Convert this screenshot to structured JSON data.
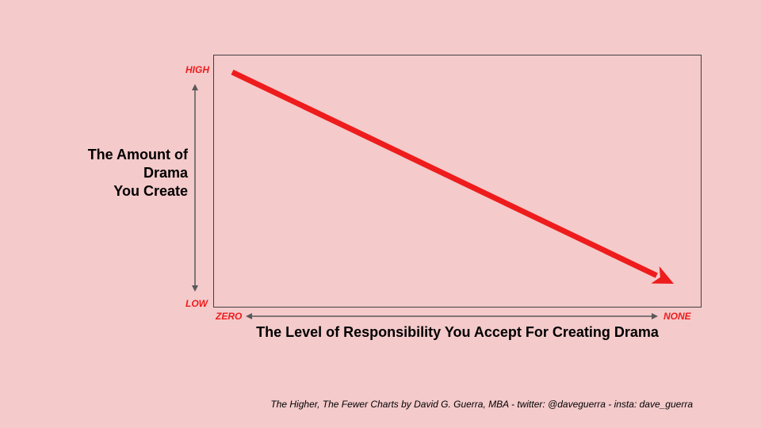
{
  "colors": {
    "background": "#f4cacb",
    "accent": "#ee1c1c",
    "axis_arrow": "#595959",
    "frame": "#404040"
  },
  "chart_data": {
    "type": "line",
    "y_axis": {
      "label_lines": [
        "The Amount of",
        "Drama",
        "You Create"
      ],
      "high_label": "HIGH",
      "low_label": "LOW"
    },
    "x_axis": {
      "label": "The Level of Responsibility You Accept For Creating Drama",
      "start_label": "ZERO",
      "end_label": "NONE"
    },
    "series": [
      {
        "x": [
          0,
          1
        ],
        "y": [
          1,
          0
        ],
        "arrowhead": "end"
      }
    ],
    "grid": false,
    "legend": "none"
  },
  "footer": {
    "credit": "The Higher, The Fewer Charts by David G. Guerra, MBA  - twitter:  @daveguerra - insta: dave_guerra"
  }
}
